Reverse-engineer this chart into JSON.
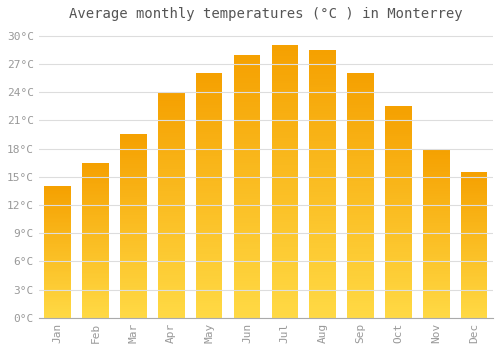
{
  "title": "Average monthly temperatures (°C ) in Monterrey",
  "months": [
    "Jan",
    "Feb",
    "Mar",
    "Apr",
    "May",
    "Jun",
    "Jul",
    "Aug",
    "Sep",
    "Oct",
    "Nov",
    "Dec"
  ],
  "values": [
    14,
    16.5,
    19.5,
    24,
    26,
    28,
    29,
    28.5,
    26,
    22.5,
    18,
    15.5
  ],
  "bar_color_dark": "#F5A623",
  "bar_color_light": "#FFD966",
  "background_color": "#FFFFFF",
  "grid_color": "#DDDDDD",
  "ylim": [
    0,
    31
  ],
  "yticks": [
    0,
    3,
    6,
    9,
    12,
    15,
    18,
    21,
    24,
    27,
    30
  ],
  "title_fontsize": 10,
  "tick_fontsize": 8,
  "font_family": "monospace"
}
